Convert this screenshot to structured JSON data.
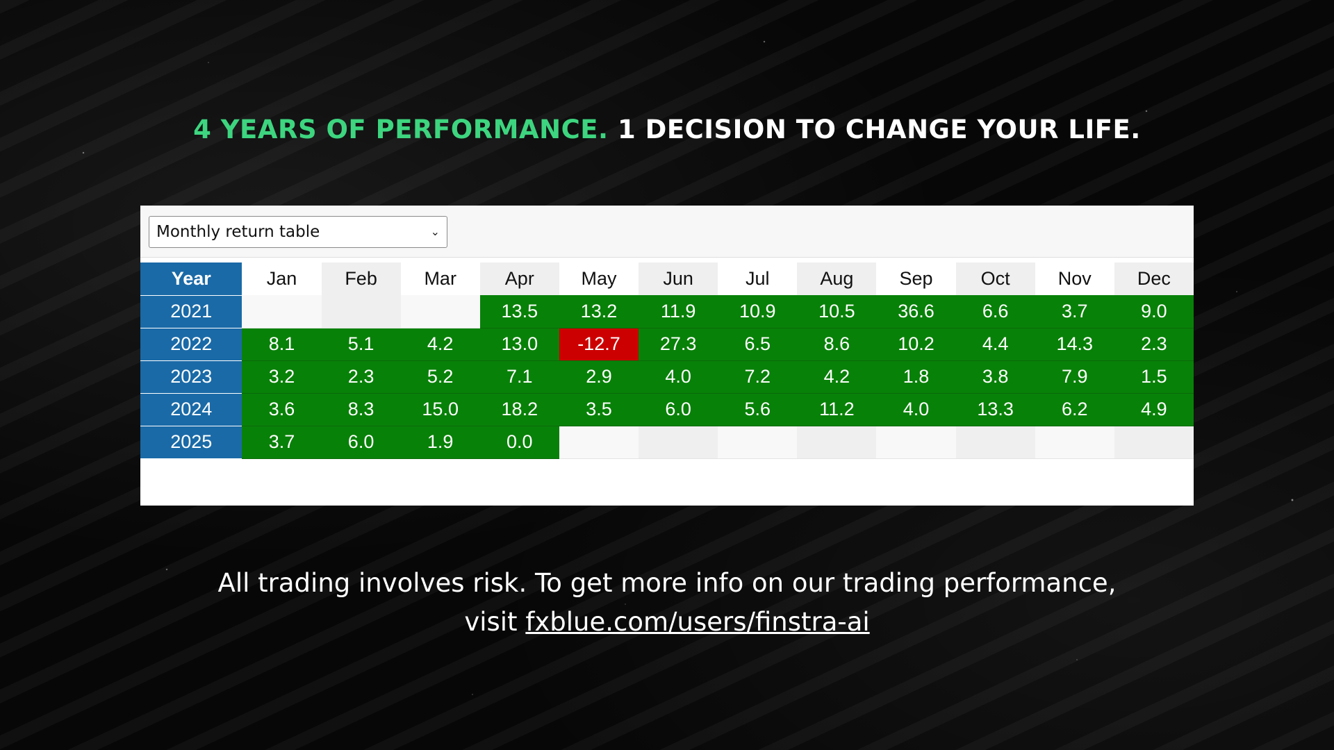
{
  "headline": {
    "green_part": "4 YEARS OF PERFORMANCE.",
    "white_part": "1 DECISION TO CHANGE YOUR LIFE."
  },
  "dropdown": {
    "selected": "Monthly return table"
  },
  "table": {
    "year_header": "Year",
    "months": [
      "Jan",
      "Feb",
      "Mar",
      "Apr",
      "May",
      "Jun",
      "Jul",
      "Aug",
      "Sep",
      "Oct",
      "Nov",
      "Dec"
    ],
    "rows": [
      {
        "year": "2021",
        "values": [
          "",
          "",
          "",
          "13.5",
          "13.2",
          "11.9",
          "10.9",
          "10.5",
          "36.6",
          "6.6",
          "3.7",
          "9.0"
        ]
      },
      {
        "year": "2022",
        "values": [
          "8.1",
          "5.1",
          "4.2",
          "13.0",
          "-12.7",
          "27.3",
          "6.5",
          "8.6",
          "10.2",
          "4.4",
          "14.3",
          "2.3"
        ]
      },
      {
        "year": "2023",
        "values": [
          "3.2",
          "2.3",
          "5.2",
          "7.1",
          "2.9",
          "4.0",
          "7.2",
          "4.2",
          "1.8",
          "3.8",
          "7.9",
          "1.5"
        ]
      },
      {
        "year": "2024",
        "values": [
          "3.6",
          "8.3",
          "15.0",
          "18.2",
          "3.5",
          "6.0",
          "5.6",
          "11.2",
          "4.0",
          "13.3",
          "6.2",
          "4.9"
        ]
      },
      {
        "year": "2025",
        "values": [
          "3.7",
          "6.0",
          "1.9",
          "0.0",
          "",
          "",
          "",
          "",
          "",
          "",
          "",
          ""
        ]
      }
    ]
  },
  "colors": {
    "positive": "#088108",
    "negative": "#cc0000",
    "year_column": "#1a6aa7",
    "headline_green": "#3dd57f"
  },
  "footer": {
    "line1": "All trading involves risk. To get more info on our trading performance,",
    "line2_prefix": "visit ",
    "link_text": "fxblue.com/users/finstra-ai"
  }
}
